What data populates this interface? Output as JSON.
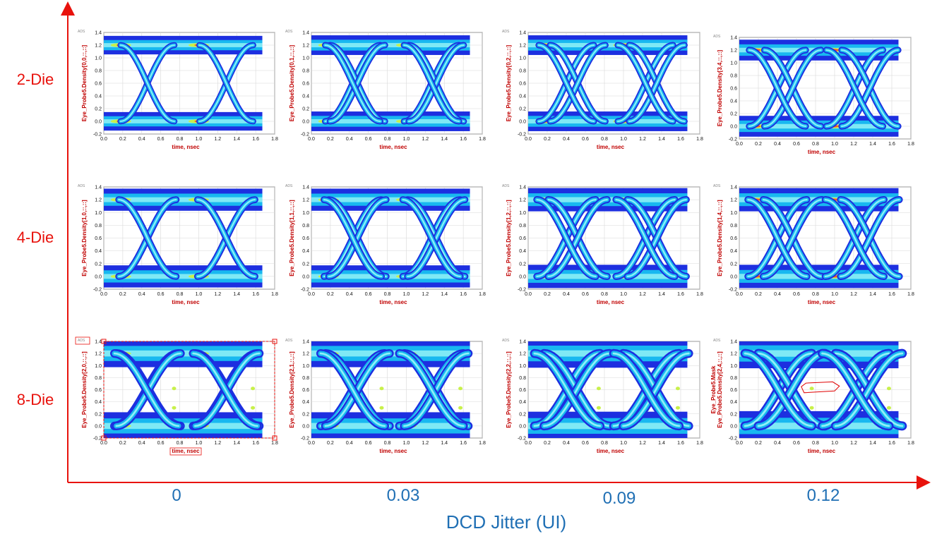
{
  "figure": {
    "row_labels": [
      "2-Die",
      "4-Die",
      "8-Die"
    ],
    "col_labels": [
      "0",
      "0.03",
      "0.09",
      "0.12"
    ],
    "x_axis_title": "DCD Jitter (UI)",
    "colors": {
      "arrow": "#e8120c",
      "labels_red": "#e8120c",
      "labels_blue": "#1f6fb4"
    }
  },
  "chart_data": {
    "type": "heatmap",
    "description_kind": "eye-diagram density grid",
    "x_ticks": [
      "0.0",
      "0.2",
      "0.4",
      "0.6",
      "0.8",
      "1.0",
      "1.2",
      "1.4",
      "1.6",
      "1.8"
    ],
    "y_ticks": [
      "-0.2",
      "0.0",
      "0.2",
      "0.4",
      "0.6",
      "0.8",
      "1.0",
      "1.2",
      "1.4"
    ],
    "xlim": [
      0,
      1.8
    ],
    "ylim": [
      -0.2,
      1.4
    ],
    "x_range_data": [
      0,
      1.67
    ],
    "xlabel": "time, nsec",
    "badge": "ADS",
    "levels": {
      "high": 1.2,
      "low": 0.0
    },
    "dcd_jitter_ui": [
      0,
      0.03,
      0.09,
      0.12
    ],
    "panels": [
      {
        "row": 0,
        "col": 0,
        "ylabel": "Eye_Probe5.Density[0,0,::,::]",
        "crossings": [
          0.46,
          1.29
        ],
        "split": 0.0,
        "blur": 0.04
      },
      {
        "row": 0,
        "col": 1,
        "ylabel": "Eye_Probe5.Density[0,1,::,::]",
        "crossings": [
          0.46,
          1.29
        ],
        "split": 0.05,
        "blur": 0.05
      },
      {
        "row": 0,
        "col": 2,
        "ylabel": "Eye_Probe5.Density[0,2,::,::]",
        "crossings": [
          0.46,
          1.29
        ],
        "split": 0.12,
        "blur": 0.05
      },
      {
        "row": 0,
        "col": 3,
        "ylabel": "Eye_Probe5.Density[3,4,::,::]",
        "crossings": [
          0.48,
          1.29
        ],
        "split": 0.16,
        "blur": 0.06
      },
      {
        "row": 1,
        "col": 0,
        "ylabel": "Eye_Probe5.Density[1,0,::,::]",
        "crossings": [
          0.46,
          1.29
        ],
        "split": 0.0,
        "blur": 0.07
      },
      {
        "row": 1,
        "col": 1,
        "ylabel": "Eye_Probe5.Density[1,1,::,::]",
        "crossings": [
          0.46,
          1.29
        ],
        "split": 0.05,
        "blur": 0.07
      },
      {
        "row": 1,
        "col": 2,
        "ylabel": "Eye_Probe5.Density[1,2,::,::]",
        "crossings": [
          0.46,
          1.29
        ],
        "split": 0.12,
        "blur": 0.08
      },
      {
        "row": 1,
        "col": 3,
        "ylabel": "Eye_Probe5.Density[1,4,::,::]",
        "crossings": [
          0.48,
          1.29
        ],
        "split": 0.16,
        "blur": 0.08
      },
      {
        "row": 2,
        "col": 0,
        "ylabel": "Eye_Probe5.Density[2,0,::,::]",
        "crossings": [
          0.46,
          1.29
        ],
        "split": 0.02,
        "blur": 0.13
      },
      {
        "row": 2,
        "col": 1,
        "ylabel": "Eye_Probe5.Density[2,1,::,::]",
        "crossings": [
          0.46,
          1.29
        ],
        "split": 0.05,
        "blur": 0.13
      },
      {
        "row": 2,
        "col": 2,
        "ylabel": "Eye_Probe5.Density[2,2,::,::]",
        "crossings": [
          0.46,
          1.29
        ],
        "split": 0.1,
        "blur": 0.14
      },
      {
        "row": 2,
        "col": 3,
        "ylabel": "Eye_Probe5.Mask\nEye_Probe5.Density[2,4,::,::]",
        "crossings": [
          0.48,
          1.29
        ],
        "split": 0.14,
        "blur": 0.15,
        "mask": [
          [
            0.65,
            0.65
          ],
          [
            0.68,
            0.55
          ],
          [
            1.0,
            0.58
          ],
          [
            1.05,
            0.66
          ],
          [
            0.98,
            0.73
          ],
          [
            0.7,
            0.71
          ]
        ]
      }
    ]
  }
}
